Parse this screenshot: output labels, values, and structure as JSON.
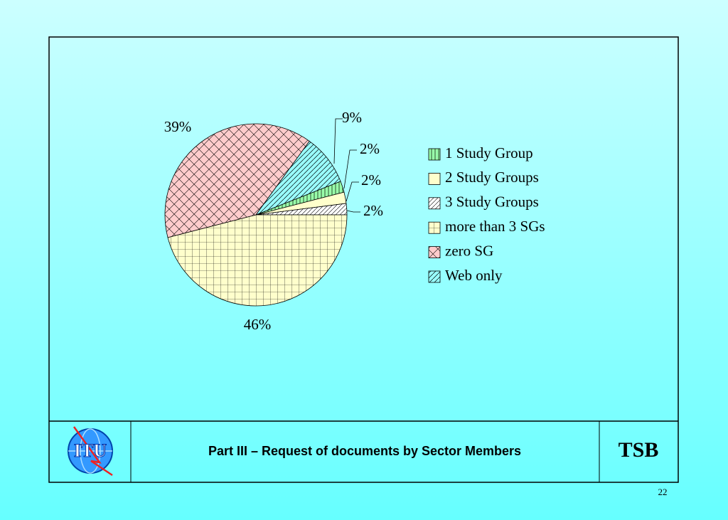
{
  "chart_data": {
    "type": "pie",
    "categories": [
      "1 Study Group",
      "2 Study Groups",
      "3 Study Groups",
      "more than 3 SGs",
      "zero SG",
      "Web only"
    ],
    "values": [
      2,
      2,
      2,
      46,
      39,
      9
    ],
    "value_labels": [
      "2%",
      "2%",
      "2%",
      "46%",
      "39%",
      "9%"
    ],
    "colors": [
      "#99ffaa",
      "#ffffcc",
      "#ffffff",
      "#ffffcc",
      "#ffcccc",
      "#99ffff"
    ],
    "legend": "right"
  },
  "footer": {
    "logo": "ITU",
    "title": "Part III – Request of documents by Sector Members",
    "org": "TSB",
    "page": "22"
  }
}
